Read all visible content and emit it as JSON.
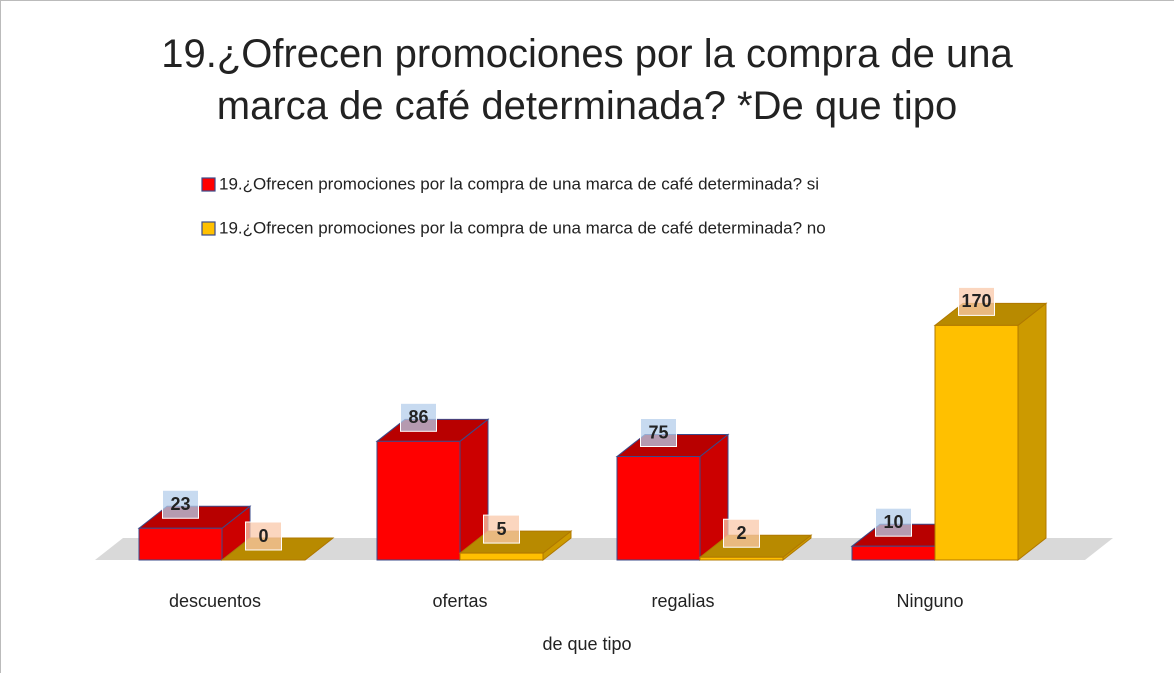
{
  "chart_data": {
    "type": "bar3d",
    "title": "19.¿Ofrecen promociones por la compra de una marca de café determinada? *De que tipo",
    "x_label": "de que tipo",
    "categories": [
      "descuentos",
      "ofertas",
      "regalias",
      "Ninguno"
    ],
    "series": [
      {
        "name": "19.¿Ofrecen promociones por la compra de una marca de café determinada? si",
        "color": "#ff0000",
        "values": [
          23,
          86,
          75,
          10
        ]
      },
      {
        "name": "19.¿Ofrecen promociones por la compra de una marca de café determinada? no",
        "color": "#ffc000",
        "values": [
          0,
          5,
          2,
          170
        ]
      }
    ],
    "legend": "top"
  }
}
